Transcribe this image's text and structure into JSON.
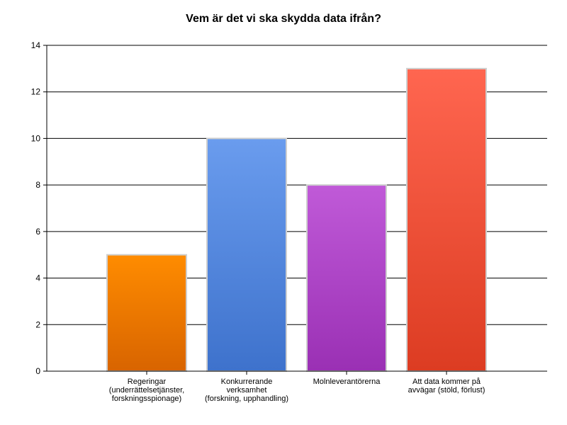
{
  "chart_data": {
    "type": "bar",
    "title": "Vem är det vi ska skydda data ifrån?",
    "categories": [
      "Regeringar (underrättelsetjänster, forskningsspionage)",
      "Konkurrerande verksamhet (forskning, upphandling)",
      "Molnleverantörerna",
      "Att data kommer på avvägar (stöld, förlust)"
    ],
    "category_lines": [
      [
        "Regeringar",
        "(underrättelsetjänster,",
        "forskningsspionage)"
      ],
      [
        "Konkurrerande verksamhet",
        "(forskning, upphandling)"
      ],
      [
        "Molnleverantörerna"
      ],
      [
        "Att data kommer på",
        "avvägar (stöld, förlust)"
      ]
    ],
    "values": [
      5,
      10,
      8,
      13
    ],
    "colors": [
      [
        "#ff8c00",
        "#d86400"
      ],
      [
        "#6a9cee",
        "#3e72cc"
      ],
      [
        "#c05ad8",
        "#9a30b4"
      ],
      [
        "#ff6650",
        "#dc3c22"
      ]
    ],
    "ylim": [
      0,
      14
    ],
    "yticks": [
      "0",
      "2",
      "4",
      "6",
      "8",
      "10",
      "12",
      "14"
    ],
    "grid": true,
    "xlabel": "",
    "ylabel": ""
  }
}
